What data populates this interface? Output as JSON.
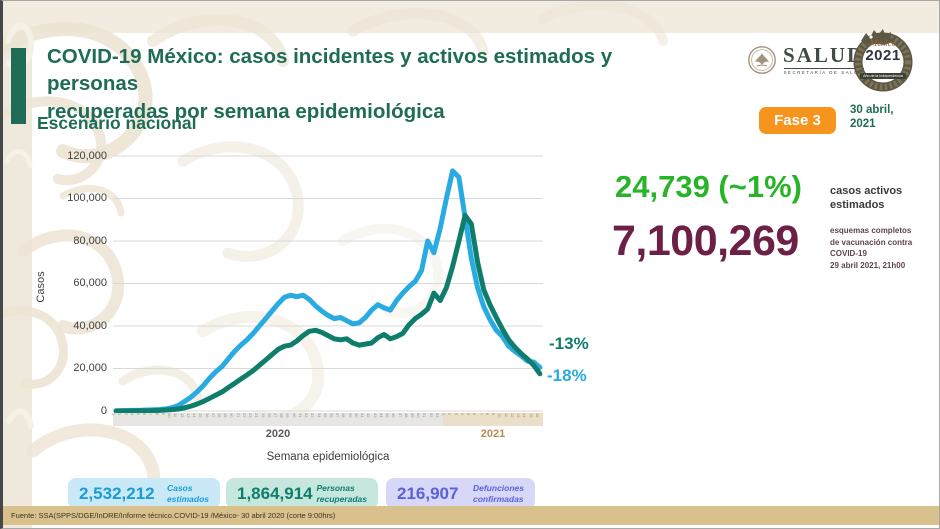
{
  "header": {
    "title_line1": "COVID-19 México: casos incidentes y activos estimados y personas",
    "title_line2": "recuperadas por semana epidemiológica",
    "subtitle": "Escenario nacional",
    "salud_logo": {
      "name": "SALUD",
      "sub": "SECRETARÍA DE SALUD"
    },
    "mexico_logo": {
      "brand": "México",
      "year": "2021",
      "sub": "Año de la Independencia"
    },
    "phase_badge": "Fase 3",
    "date_line1": "30 abril,",
    "date_line2": "2021"
  },
  "stats": {
    "active_cases": {
      "value": "24,739 (~1%)",
      "label_line1": "casos activos",
      "label_line2": "estimados",
      "color": "#28b428"
    },
    "vaccination": {
      "value": "7,100,269",
      "label_line1": "esquemas completos",
      "label_line2": "de vacunación contra COVID-19",
      "label_line3": "29 abril 2021, 21h00",
      "color": "#6d2046"
    }
  },
  "chart_data": {
    "type": "line",
    "title": "Casos incidentes y activos estimados y personas recuperadas por semana epidemiológica",
    "ylabel": "Casos",
    "xlabel": "Semana epidemiológica",
    "ylim": [
      0,
      120000
    ],
    "grid": "horizontal",
    "ytick_labels": [
      "0",
      "20,000",
      "40,000",
      "60,000",
      "80,000",
      "100,000",
      "120,000"
    ],
    "x_groups": [
      {
        "label": "2020",
        "weeks": 53,
        "tick_color": "#8a8a8a",
        "band_color": "#e7e6e3"
      },
      {
        "label": "2021",
        "weeks": 16,
        "tick_color": "#b5835a",
        "band_color": "#eadfc8"
      }
    ],
    "series": [
      {
        "name": "Casos incidentes estimados",
        "color": "#29abe2",
        "end_label": "-18%",
        "values": [
          150,
          200,
          250,
          300,
          350,
          450,
          550,
          700,
          1000,
          1600,
          2600,
          4500,
          6500,
          9000,
          12000,
          15500,
          18500,
          21000,
          24500,
          28000,
          31000,
          33500,
          36500,
          40000,
          43500,
          47000,
          50500,
          53500,
          54500,
          53800,
          54500,
          52500,
          49500,
          47000,
          45000,
          43500,
          44000,
          42500,
          41000,
          41500,
          44000,
          47500,
          50000,
          48500,
          47500,
          52000,
          55500,
          58500,
          61000,
          66000,
          80000,
          74500,
          86000,
          100000,
          113000,
          110000,
          91000,
          72000,
          58000,
          49000,
          43000,
          38000,
          35000,
          30500,
          28000,
          26000,
          23500,
          23000,
          20500
        ]
      },
      {
        "name": "Personas recuperadas",
        "color": "#0f7d6c",
        "end_label": "-13%",
        "values": [
          0,
          0,
          0,
          50,
          100,
          150,
          200,
          300,
          450,
          650,
          950,
          1500,
          2300,
          3300,
          4500,
          6000,
          7500,
          9000,
          11000,
          13000,
          15000,
          17000,
          19000,
          21500,
          24000,
          26500,
          29000,
          30500,
          31000,
          33000,
          35500,
          37500,
          38000,
          37000,
          35500,
          34000,
          33500,
          34000,
          32000,
          31000,
          31500,
          32000,
          34500,
          36000,
          34000,
          35000,
          36500,
          40500,
          43500,
          45500,
          48000,
          55500,
          52000,
          58000,
          68000,
          80000,
          92000,
          88000,
          70000,
          57000,
          50000,
          44000,
          38500,
          33500,
          30000,
          27000,
          24500,
          21500,
          17500
        ]
      }
    ]
  },
  "badges": [
    {
      "value": "2,532,212",
      "label_line1": "Casos",
      "label_line2": "estimados",
      "bg": "#c9e9f7",
      "color": "#1a9cd8"
    },
    {
      "value": "1,864,914",
      "label_line1": "Personas",
      "label_line2": "recuperadas",
      "bg": "#c6e7de",
      "color": "#0f7d6c"
    },
    {
      "value": "216,907",
      "label_line1": "Defunciones",
      "label_line2": "confirmadas",
      "bg": "#d7d8f8",
      "color": "#5c60da"
    }
  ],
  "footer": "Fuente: SSA(SPPS/DGE/InDRE/Informe técnico.COVID-19 /México- 30 abril 2020 (corte 9:00hrs)"
}
